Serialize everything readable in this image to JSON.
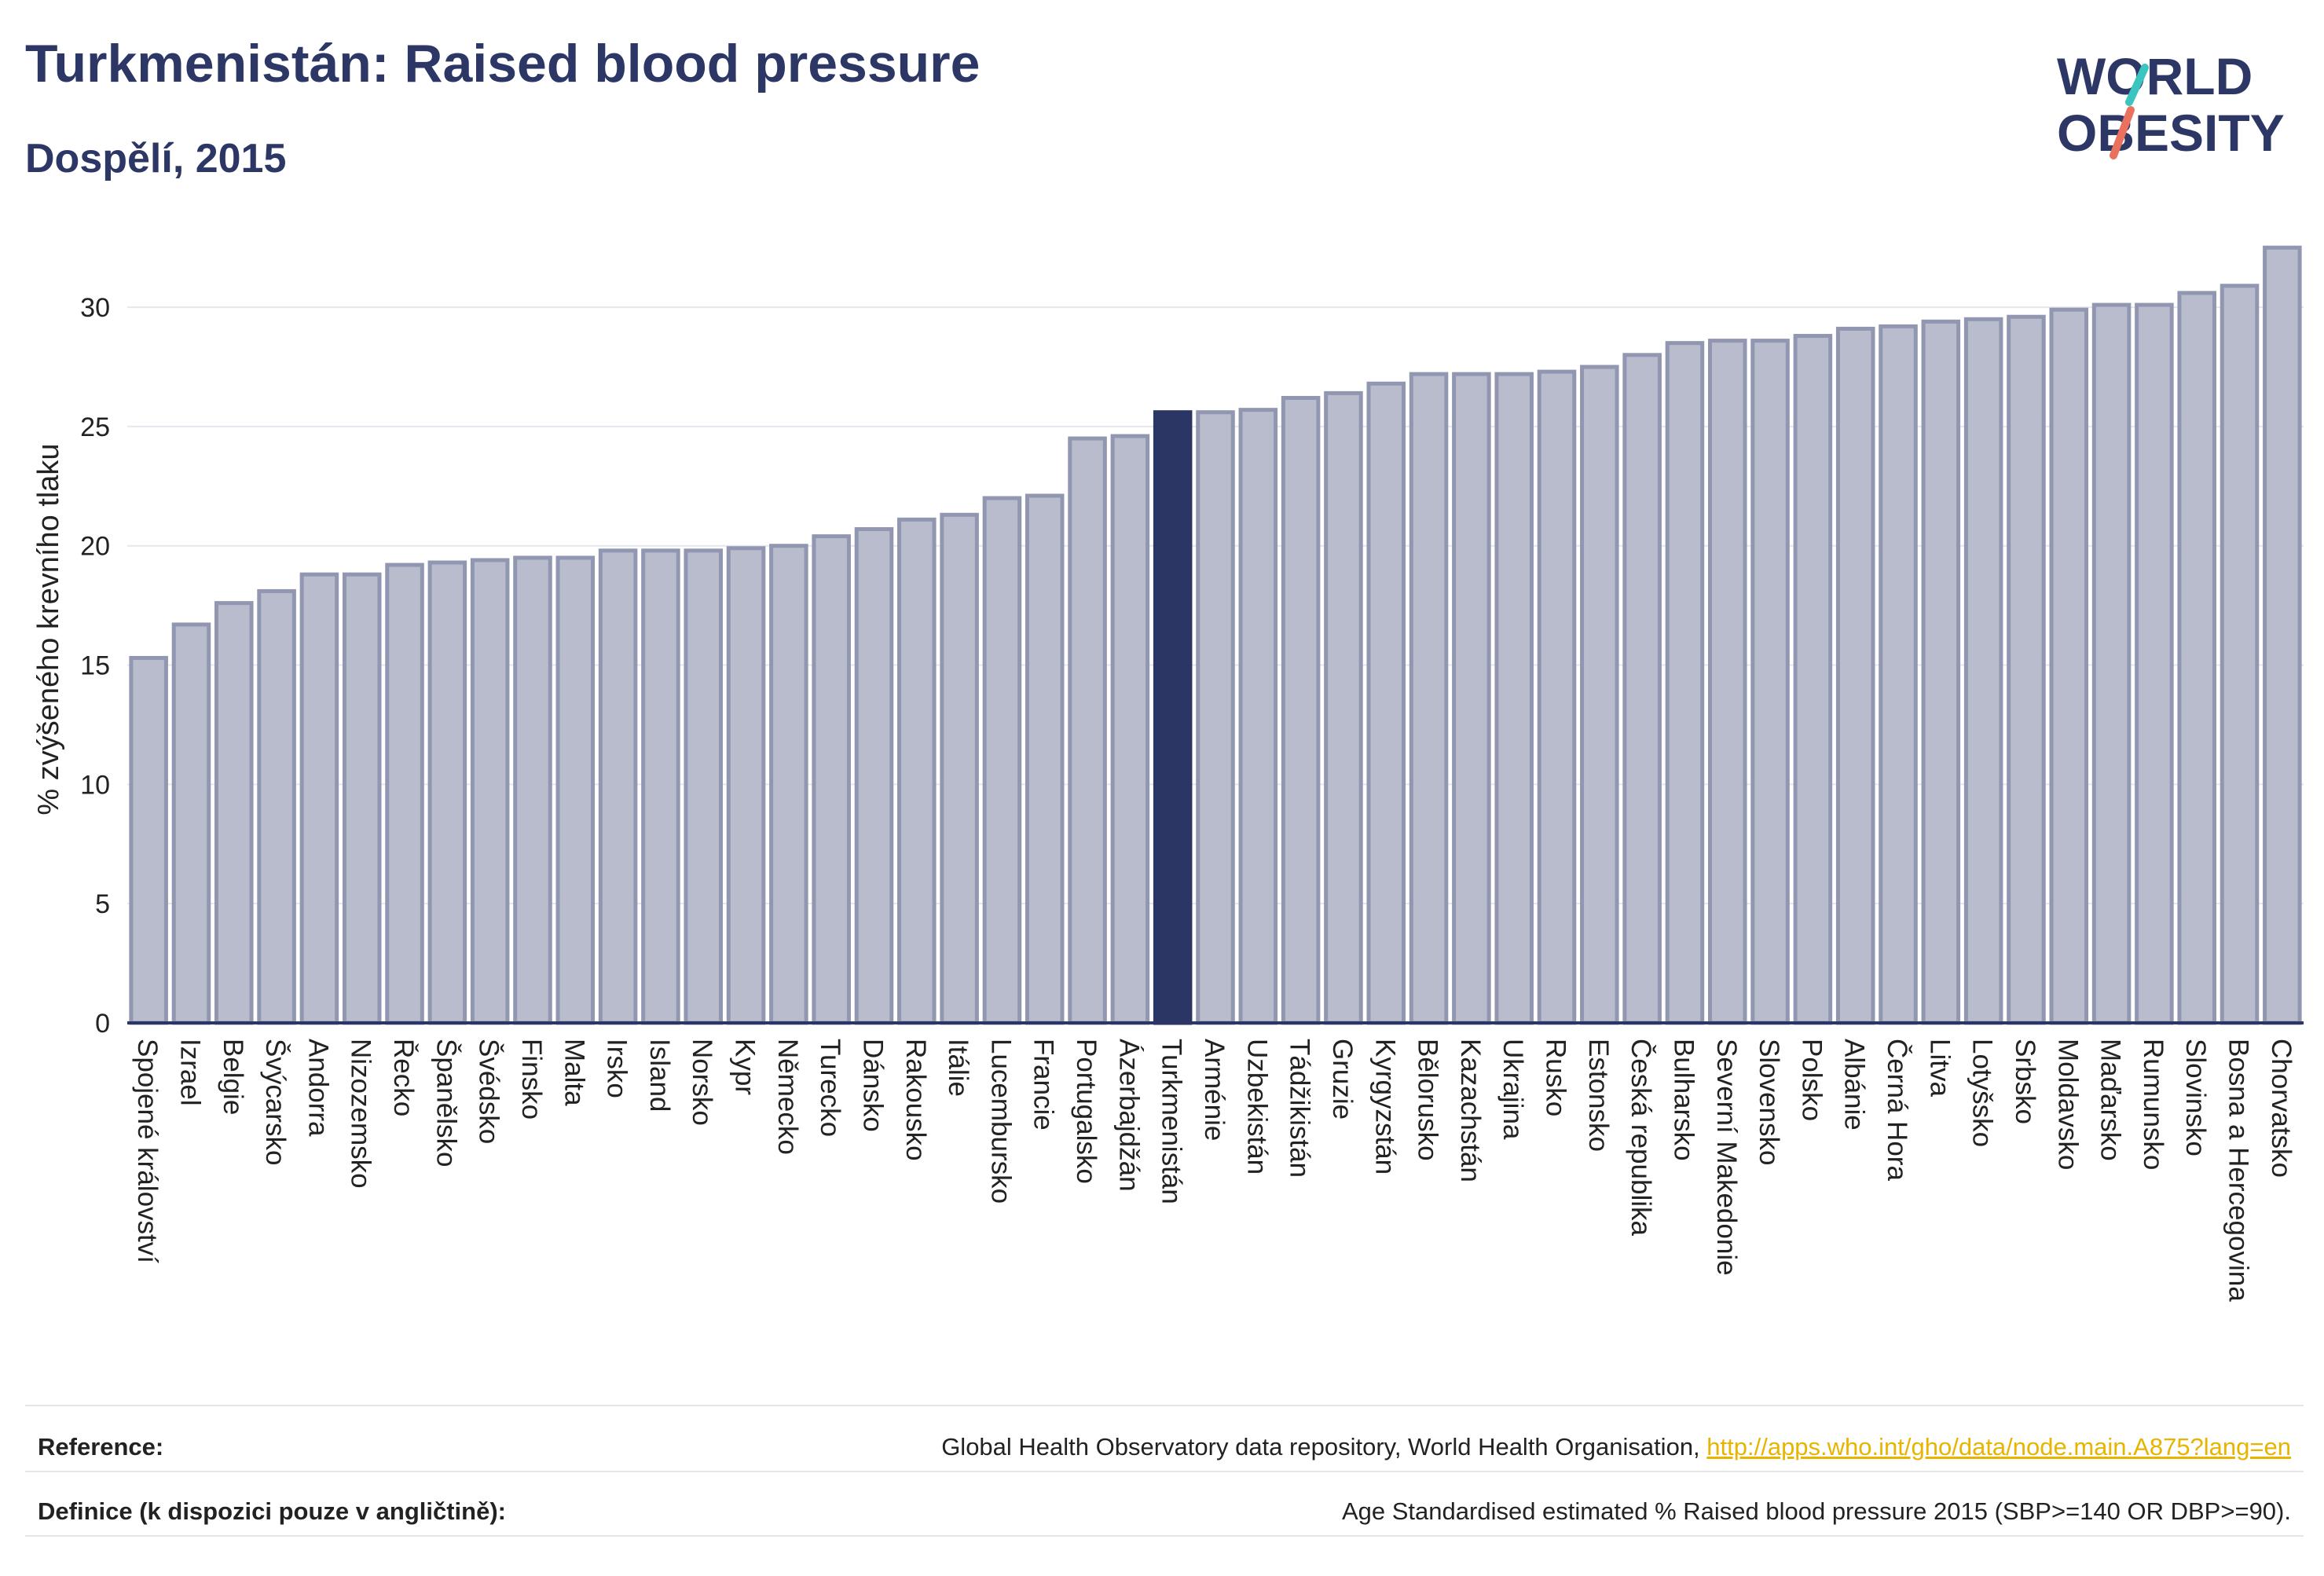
{
  "header": {
    "title": "Turkmenistán: Raised blood pressure",
    "subtitle": "Dospělí, 2015"
  },
  "logo": {
    "line1": "WORLD",
    "line2": "OBESITY"
  },
  "colors": {
    "bar": "#b9bccd",
    "bar_stroke": "#9196b1",
    "highlight": "#2b3665",
    "text": "#2d3766",
    "logo_accent": "#e9715e",
    "logo_accent2": "#3cc5c0",
    "grid": "#e6e7ee",
    "link": "#e8b400"
  },
  "chart_data": {
    "type": "bar",
    "ylabel": "% zvýšeného krevního tlaku",
    "ylim": [
      0,
      33
    ],
    "yticks": [
      0,
      5,
      10,
      15,
      20,
      25,
      30
    ],
    "grid": true,
    "highlight": "Turkmenistán",
    "categories": [
      "Spojené království",
      "Izrael",
      "Belgie",
      "Švýcarsko",
      "Andorra",
      "Nizozemsko",
      "Řecko",
      "Španělsko",
      "Švédsko",
      "Finsko",
      "Malta",
      "Irsko",
      "Island",
      "Norsko",
      "Kypr",
      "Německo",
      "Turecko",
      "Dánsko",
      "Rakousko",
      "Itálie",
      "Lucembursko",
      "Francie",
      "Portugalsko",
      "Ázerbajdžán",
      "Turkmenistán",
      "Arménie",
      "Uzbekistán",
      "Tádžikistán",
      "Gruzie",
      "Kyrgyzstán",
      "Bělorusko",
      "Kazachstán",
      "Ukrajina",
      "Rusko",
      "Estonsko",
      "Česká republika",
      "Bulharsko",
      "Severní Makedonie",
      "Slovensko",
      "Polsko",
      "Albánie",
      "Černá Hora",
      "Litva",
      "Lotyšsko",
      "Srbsko",
      "Moldavsko",
      "Maďarsko",
      "Rumunsko",
      "Slovinsko",
      "Bosna a Hercegovina",
      "Chorvatsko"
    ],
    "values": [
      15.3,
      16.7,
      17.6,
      18.1,
      18.8,
      18.8,
      19.2,
      19.3,
      19.4,
      19.5,
      19.5,
      19.8,
      19.8,
      19.8,
      19.9,
      20.0,
      20.4,
      20.7,
      21.1,
      21.3,
      22.0,
      22.1,
      24.5,
      24.6,
      25.6,
      25.6,
      25.7,
      26.2,
      26.4,
      26.8,
      27.2,
      27.2,
      27.2,
      27.3,
      27.5,
      28.0,
      28.5,
      28.6,
      28.6,
      28.8,
      29.1,
      29.2,
      29.4,
      29.5,
      29.6,
      29.9,
      30.1,
      30.1,
      30.6,
      30.9,
      32.5
    ]
  },
  "footer": {
    "reference_label": "Reference:",
    "reference_text": "Global Health Observatory data repository, World Health Organisation, ",
    "reference_link": "http://apps.who.int/gho/data/node.main.A875?lang=en",
    "definition_label": "Definice (k dispozici pouze v angličtině):",
    "definition_text": "Age Standardised estimated % Raised blood pressure 2015 (SBP>=140 OR DBP>=90)."
  }
}
